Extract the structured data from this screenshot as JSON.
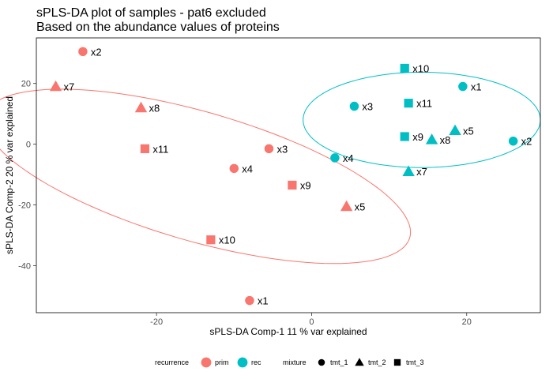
{
  "chart_data": {
    "type": "scatter",
    "title": "sPLS-DA plot of samples - pat6 excluded",
    "subtitle": "Based on the abundance values of proteins",
    "xlabel": "sPLS-DA Comp-1 11 % var explained",
    "ylabel": "sPLS-DA Comp-2 20 % var explained",
    "xlim": [
      -35.5,
      29.5
    ],
    "ylim": [
      -55.5,
      35
    ],
    "xticks": [
      -20,
      0,
      20
    ],
    "yticks": [
      20,
      0,
      -20,
      -40
    ],
    "grid": false,
    "legend_placement": "bottom",
    "colors": {
      "prim": "#F8766D",
      "rec": "#00BFC4",
      "frame": "#000000"
    },
    "legend": {
      "recurrence_title": "recurrence",
      "recurrence": [
        "prim",
        "rec"
      ],
      "mixture_title": "mixture",
      "mixture": [
        {
          "label": "tmt_1",
          "shape": "circle"
        },
        {
          "label": "tmt_2",
          "shape": "triangle"
        },
        {
          "label": "tmt_3",
          "shape": "square"
        }
      ]
    },
    "series": [
      {
        "name": "prim",
        "points": [
          {
            "label": "x2",
            "shape": "circle",
            "x": -29.5,
            "y": 30.5
          },
          {
            "label": "x7",
            "shape": "triangle",
            "x": -33.0,
            "y": 19.0
          },
          {
            "label": "x8",
            "shape": "triangle",
            "x": -22.0,
            "y": 12.0
          },
          {
            "label": "x11",
            "shape": "square",
            "x": -21.5,
            "y": -1.5
          },
          {
            "label": "x3",
            "shape": "circle",
            "x": -5.5,
            "y": -1.5
          },
          {
            "label": "x4",
            "shape": "circle",
            "x": -10.0,
            "y": -8.0
          },
          {
            "label": "x9",
            "shape": "square",
            "x": -2.5,
            "y": -13.5
          },
          {
            "label": "x5",
            "shape": "triangle",
            "x": 4.5,
            "y": -20.5
          },
          {
            "label": "x10",
            "shape": "square",
            "x": -13.0,
            "y": -31.5
          },
          {
            "label": "x1",
            "shape": "circle",
            "x": -8.0,
            "y": -51.5
          }
        ],
        "ellipse": {
          "cx": -14.7,
          "cy": -10.6,
          "rx": 36.0,
          "ry": 16.8,
          "angle_deg": -47
        }
      },
      {
        "name": "rec",
        "points": [
          {
            "label": "x10",
            "shape": "square",
            "x": 12.0,
            "y": 25.0
          },
          {
            "label": "x1",
            "shape": "circle",
            "x": 19.5,
            "y": 19.0
          },
          {
            "label": "x3",
            "shape": "circle",
            "x": 5.5,
            "y": 12.5
          },
          {
            "label": "x11",
            "shape": "square",
            "x": 12.5,
            "y": 13.5
          },
          {
            "label": "x5",
            "shape": "triangle",
            "x": 18.5,
            "y": 4.5
          },
          {
            "label": "x9",
            "shape": "square",
            "x": 12.0,
            "y": 2.5
          },
          {
            "label": "x8",
            "shape": "triangle",
            "x": 15.5,
            "y": 1.5
          },
          {
            "label": "x2",
            "shape": "circle",
            "x": 26.0,
            "y": 1.0
          },
          {
            "label": "x4",
            "shape": "circle",
            "x": 3.0,
            "y": -4.5
          },
          {
            "label": "x7",
            "shape": "triangle",
            "x": 12.5,
            "y": -9.0
          }
        ],
        "ellipse": {
          "cx": 14.2,
          "cy": 8.0,
          "rx": 15.3,
          "ry": 15.7,
          "angle_deg": 0
        }
      }
    ]
  }
}
